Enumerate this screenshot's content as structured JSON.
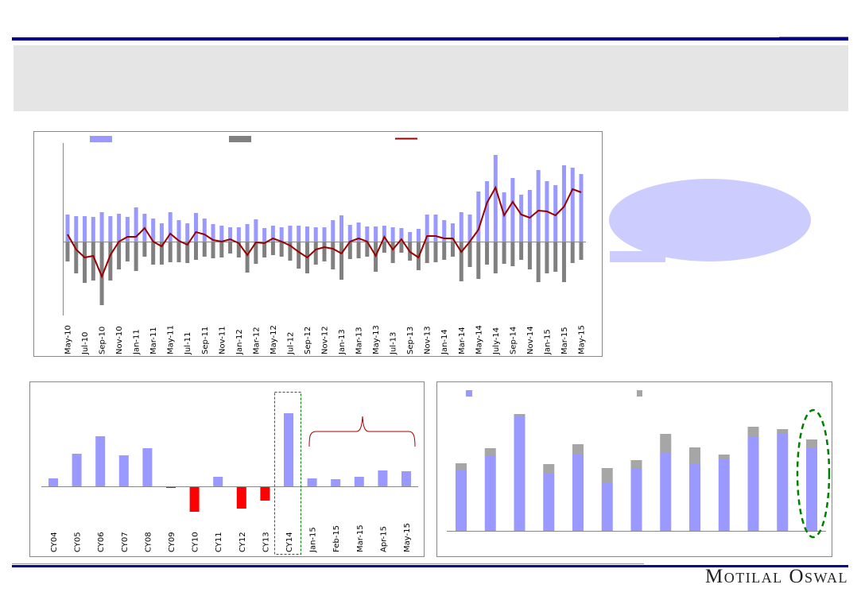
{
  "brand": {
    "logo_text": "Motilal Oswal",
    "line_color": "#000099"
  },
  "colors": {
    "blue": "#9999ff",
    "gray": "#808080",
    "light_gray": "#a6a6a6",
    "red": "#ff0000",
    "line": "#990000",
    "callout": "#ccccff",
    "highlight": "#008000"
  },
  "chart_data": [
    {
      "type": "bar+line",
      "title": "",
      "xlabel": "",
      "ylabel": "",
      "grid": false,
      "legend": "top (swatches only, no text printed)",
      "ylim": [
        -93,
        124
      ],
      "tick_labels": [
        "May-10",
        "Jul-10",
        "Sep-10",
        "Nov-10",
        "Jan-11",
        "Mar-11",
        "May-11",
        "Jul-11",
        "Sep-11",
        "Nov-11",
        "Jan-12",
        "Mar-12",
        "May-12",
        "Jul-12",
        "Sep-12",
        "Nov-12",
        "Jan-13",
        "Mar-13",
        "May-13",
        "Jul-13",
        "Sep-13",
        "Nov-13",
        "Jan-14",
        "Mar-14",
        "May-14",
        "July-14",
        "Sep-14",
        "Nov-14",
        "Jan-15",
        "Mar-15",
        "May-15"
      ],
      "series": [
        {
          "kind": "bar",
          "color": "#9999ff",
          "values": [
            34,
            32,
            32,
            31,
            37,
            32,
            35,
            31,
            43,
            35,
            29,
            23,
            37,
            27,
            23,
            36,
            29,
            22,
            20,
            18,
            18,
            22,
            28,
            17,
            20,
            18,
            20,
            20,
            19,
            18,
            18,
            27,
            33,
            21,
            24,
            19,
            19,
            20,
            18,
            17,
            12,
            16,
            34,
            34,
            27,
            23,
            37,
            34,
            63,
            76,
            109,
            62,
            80,
            59,
            65,
            90,
            76,
            71,
            96,
            93,
            85
          ]
        },
        {
          "kind": "bar",
          "color": "#808080",
          "values": [
            -25,
            -40,
            -52,
            -49,
            -80,
            -49,
            -35,
            -25,
            -37,
            -19,
            -29,
            -29,
            -26,
            -26,
            -27,
            -23,
            -19,
            -21,
            -20,
            -15,
            -20,
            -39,
            -28,
            -20,
            -17,
            -19,
            -24,
            -34,
            -40,
            -29,
            -25,
            -35,
            -48,
            -22,
            -21,
            -19,
            -38,
            -14,
            -27,
            -14,
            -24,
            -36,
            -27,
            -26,
            -23,
            -19,
            -50,
            -32,
            -47,
            -29,
            -40,
            -28,
            -31,
            -23,
            -35,
            -51,
            -40,
            -38,
            -51,
            -27,
            -23
          ]
        },
        {
          "kind": "line",
          "color": "#990000",
          "values": [
            9,
            -10,
            -20,
            -18,
            -44,
            -17,
            0,
            6,
            6,
            17,
            0,
            -6,
            10,
            1,
            -4,
            12,
            9,
            2,
            0,
            3,
            -2,
            -17,
            -1,
            -2,
            4,
            0,
            -5,
            -13,
            -20,
            -10,
            -7,
            -9,
            -15,
            0,
            4,
            0,
            -18,
            6,
            -10,
            3,
            -13,
            -20,
            7,
            7,
            4,
            4,
            -13,
            0,
            15,
            49,
            68,
            33,
            50,
            34,
            30,
            39,
            38,
            33,
            44,
            66,
            62
          ]
        }
      ]
    },
    {
      "type": "bar",
      "title": "",
      "xlabel": "",
      "ylabel": "",
      "grid": false,
      "ylim": [
        -40,
        105
      ],
      "categories": [
        "CY04",
        "CY05",
        "CY06",
        "CY07",
        "CY08",
        "CY09",
        "CY10",
        "CY11",
        "CY12",
        "CY13",
        "CY14",
        "Jan-15",
        "Feb-15",
        "Mar-15",
        "Apr-15",
        "May-15"
      ],
      "values": [
        10,
        41,
        63,
        39,
        48,
        -2,
        -32,
        12,
        -28,
        -18,
        92,
        10,
        9,
        12,
        20,
        19
      ],
      "positive_color": "#9999ff",
      "negative_color": "#ff0000",
      "annotations": [
        "dashed box around CY14",
        "brace over Jan-15 to May-15"
      ]
    },
    {
      "type": "stacked-bar",
      "title": "",
      "xlabel": "",
      "ylabel": "",
      "grid": false,
      "legend": "top (swatches only, no text printed)",
      "ylim": [
        0,
        165
      ],
      "series": [
        {
          "color": "#9999ff",
          "values": [
            77,
            94,
            145,
            73,
            96,
            61,
            79,
            99,
            84,
            91,
            119,
            122,
            105
          ]
        },
        {
          "color": "#a6a6a6",
          "values": [
            8,
            10,
            2,
            11,
            13,
            18,
            10,
            23,
            21,
            5,
            12,
            6,
            10
          ]
        }
      ],
      "annotations": [
        "dashed ellipse around last bar"
      ]
    }
  ]
}
